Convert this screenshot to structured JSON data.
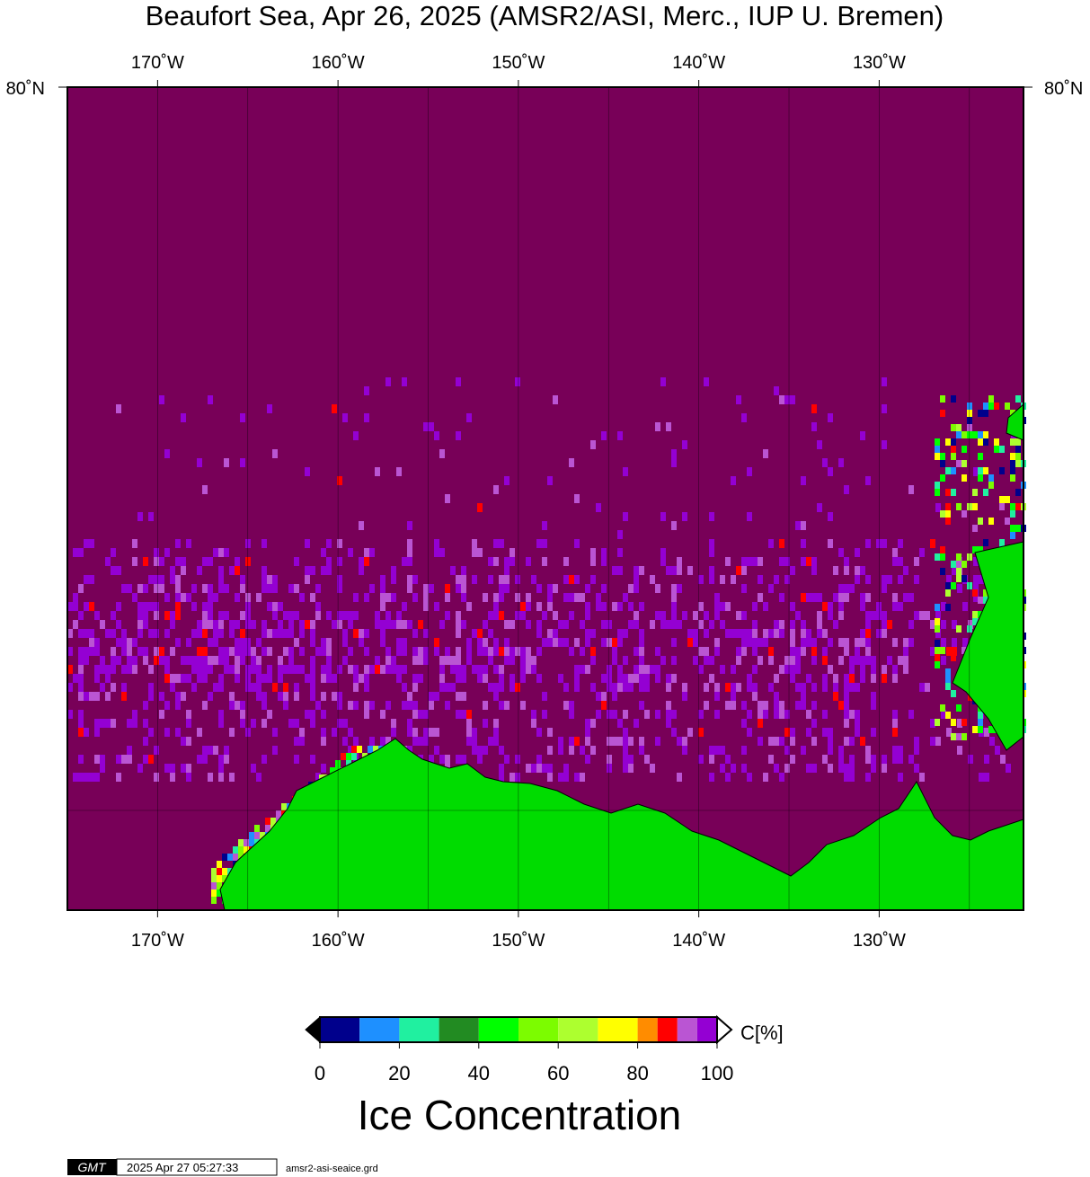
{
  "map": {
    "title": "Beaufort Sea, Apr 26, 2025 (AMSR2/ASI, Merc., IUP U. Bremen)",
    "xlim": [
      -175,
      -122
    ],
    "lon_ticks": [
      {
        "value": -170,
        "label": "170˚W"
      },
      {
        "value": -160,
        "label": "160˚W"
      },
      {
        "value": -150,
        "label": "150˚W"
      },
      {
        "value": -140,
        "label": "140˚W"
      },
      {
        "value": -130,
        "label": "130˚W"
      }
    ],
    "lon_grid": [
      -165,
      -155,
      -145,
      -135,
      -125
    ],
    "lat_label": "80˚N",
    "colors": {
      "ocean": "#780058",
      "land": "#00dc00"
    },
    "colorbar": {
      "bins": [
        0,
        10,
        20,
        30,
        40,
        50,
        60,
        70,
        80,
        85,
        90,
        95,
        100
      ],
      "colors": [
        "#00008c",
        "#1e90ff",
        "#20f0a0",
        "#228b22",
        "#00ff00",
        "#7cfc00",
        "#adff2f",
        "#ffff00",
        "#ff8c00",
        "#ff0000",
        "#ba55d3",
        "#9400d3"
      ],
      "ticks": [
        0,
        20,
        40,
        60,
        80,
        100
      ],
      "unit": "C[%]",
      "label": "Ice Concentration"
    },
    "footer": {
      "logo": "GMT",
      "timestamp": "2025 Apr 27 05:27:33",
      "file": "amsr2-asi-seaice.grd"
    }
  }
}
